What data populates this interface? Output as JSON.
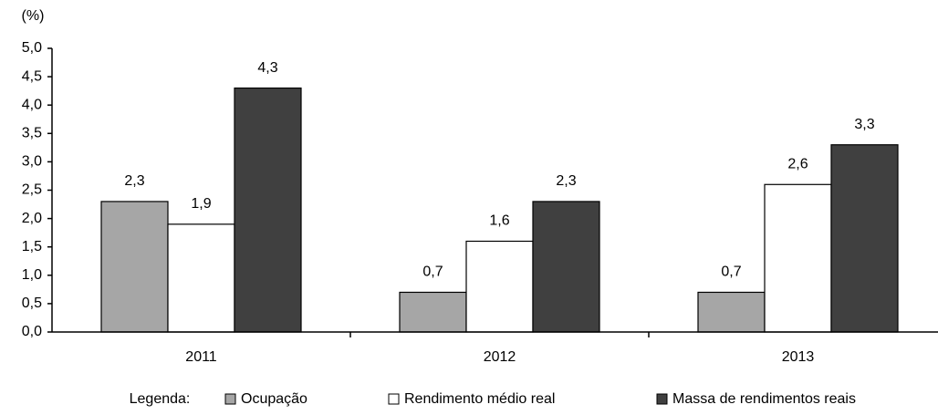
{
  "chart_data": {
    "type": "bar",
    "y_unit": "(%)",
    "categories": [
      "2011",
      "2012",
      "2013"
    ],
    "series": [
      {
        "name": "Ocupação",
        "color": "#a6a6a6",
        "values": [
          2.3,
          0.7,
          0.7
        ],
        "value_labels": [
          "2,3",
          "0,7",
          "0,7"
        ]
      },
      {
        "name": "Rendimento médio real",
        "color": "#ffffff",
        "values": [
          1.9,
          1.6,
          2.6
        ],
        "value_labels": [
          "1,9",
          "1,6",
          "2,6"
        ]
      },
      {
        "name": "Massa de rendimentos reais",
        "color": "#404040",
        "values": [
          4.3,
          2.3,
          3.3
        ],
        "value_labels": [
          "4,3",
          "2,3",
          "3,3"
        ]
      }
    ],
    "ylim": [
      0,
      5
    ],
    "yticks": [
      {
        "value": 0,
        "label": "0,0"
      },
      {
        "value": 0.5,
        "label": "0,5"
      },
      {
        "value": 1,
        "label": "1,0"
      },
      {
        "value": 1.5,
        "label": "1,5"
      },
      {
        "value": 2,
        "label": "2,0"
      },
      {
        "value": 2.5,
        "label": "2,5"
      },
      {
        "value": 3,
        "label": "3,0"
      },
      {
        "value": 3.5,
        "label": "3,5"
      },
      {
        "value": 4,
        "label": "4,0"
      },
      {
        "value": 4.5,
        "label": "4,5"
      },
      {
        "value": 5,
        "label": "5,0"
      }
    ],
    "legend_title": "Legenda:"
  }
}
